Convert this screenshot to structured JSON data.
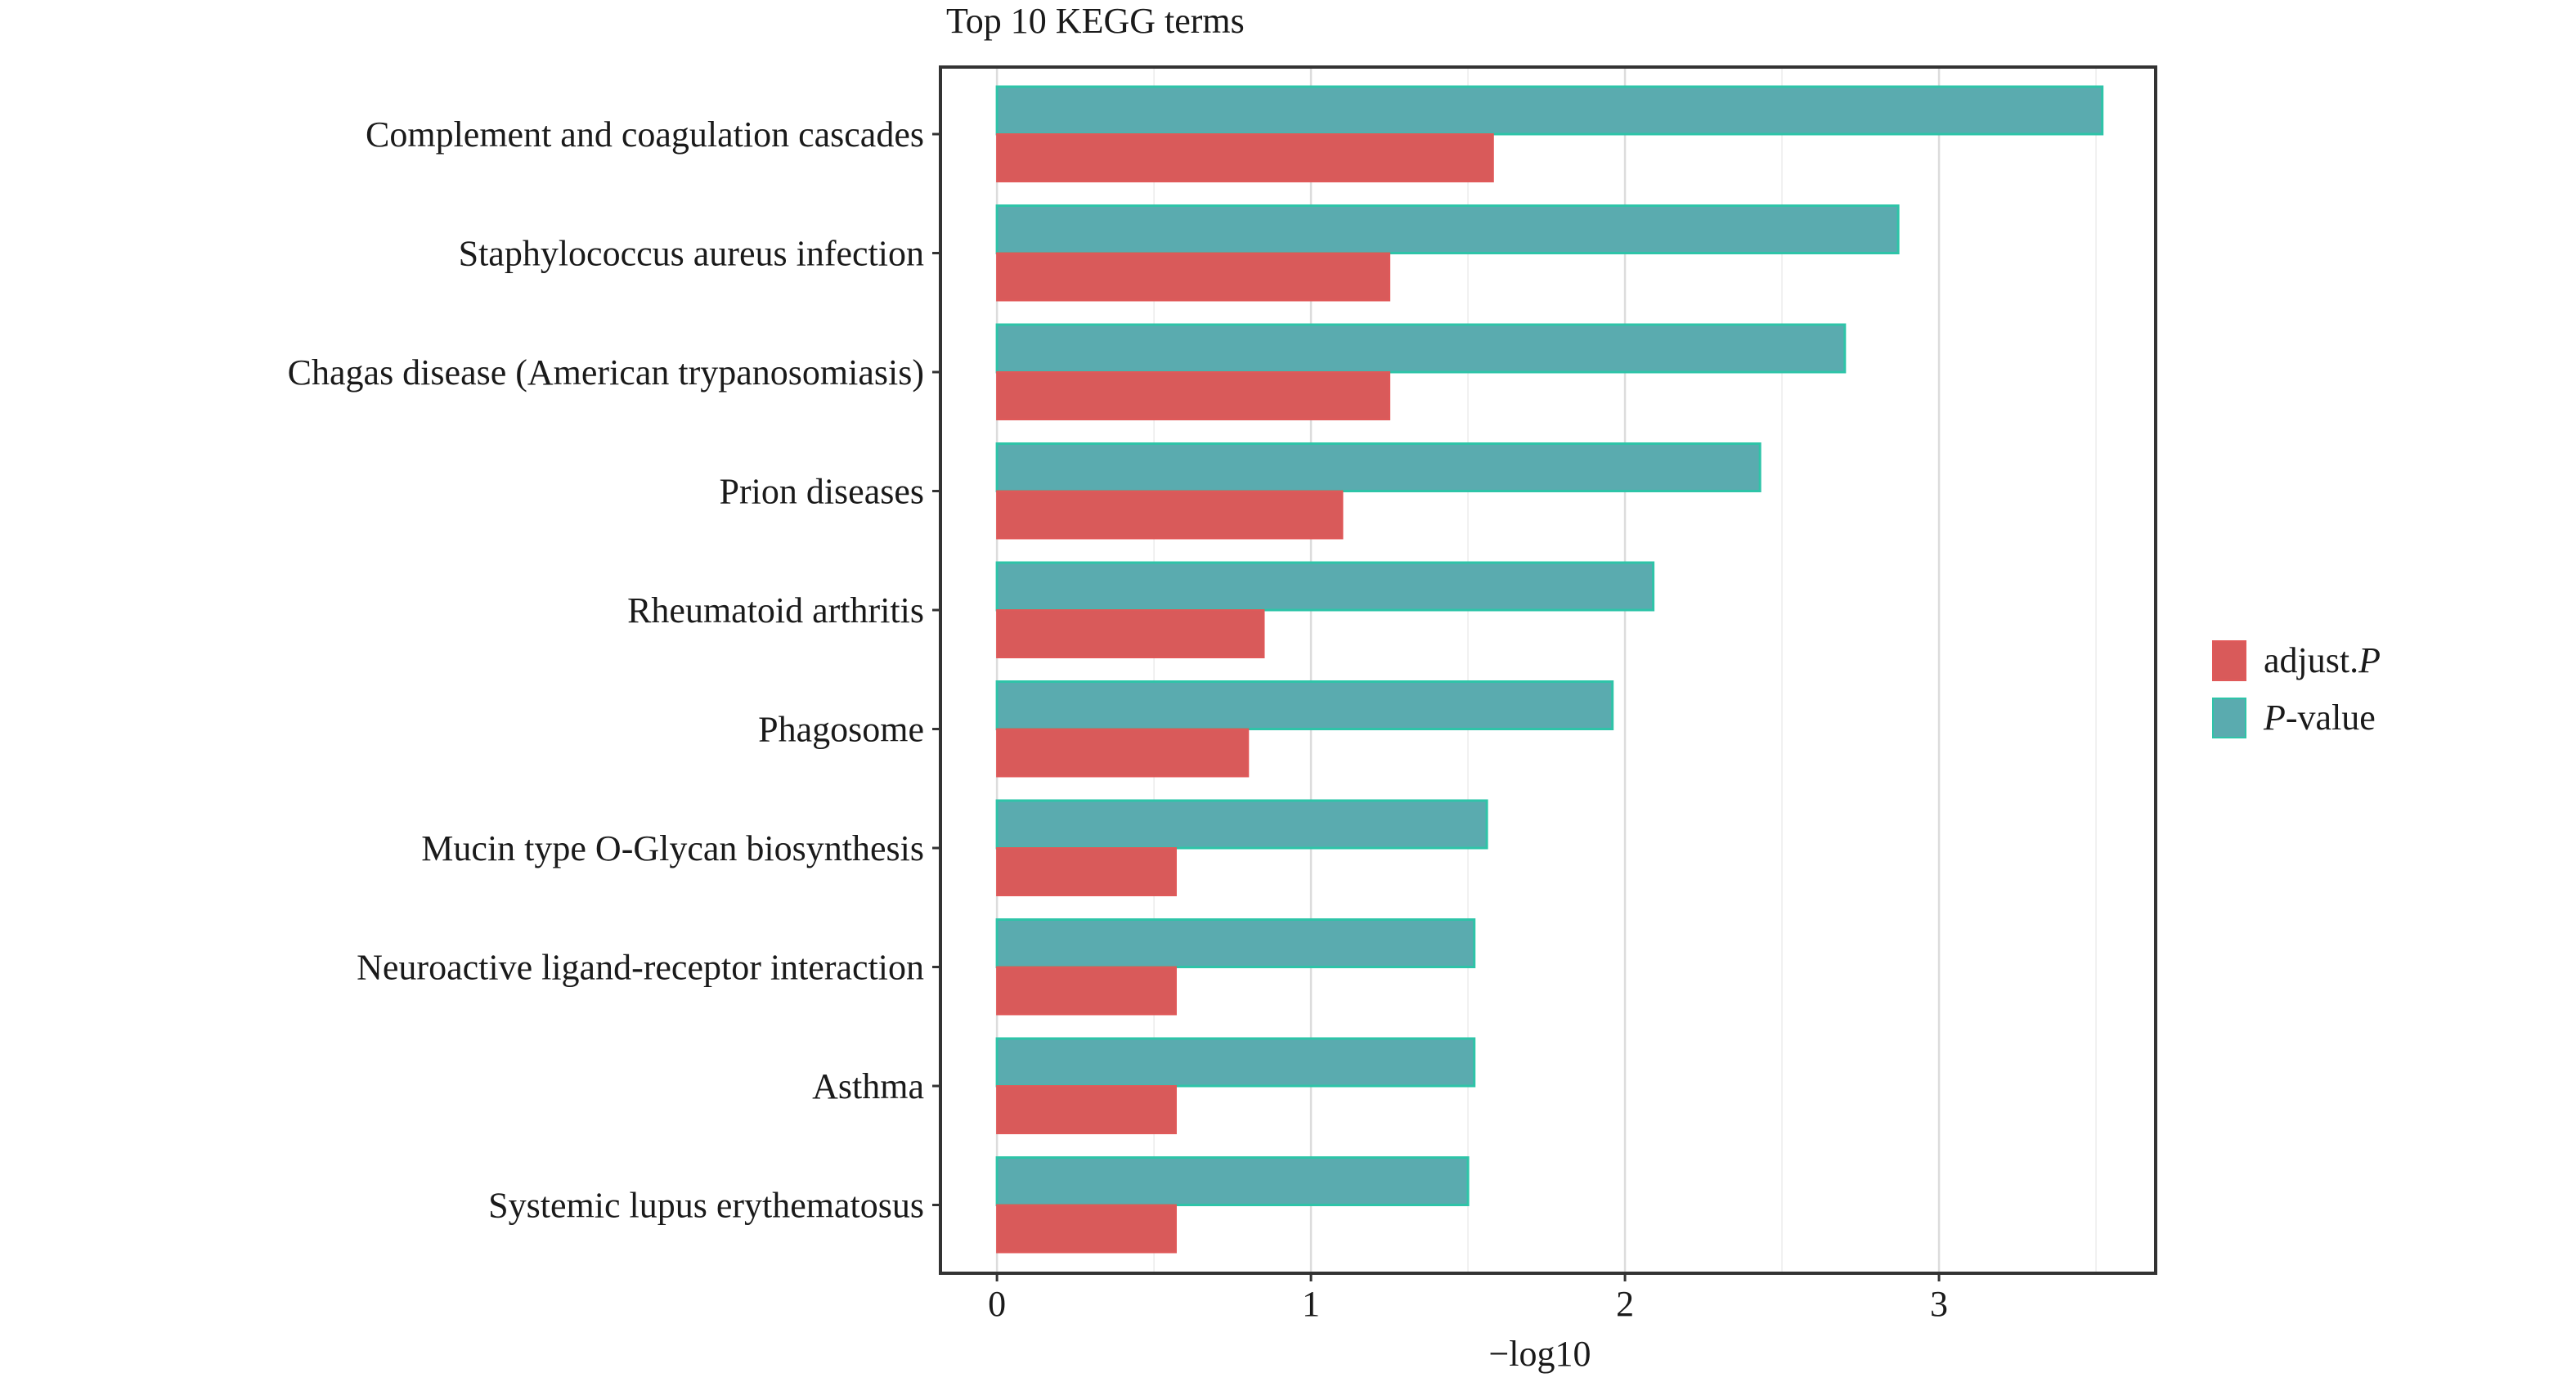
{
  "chart_data": {
    "type": "bar",
    "orientation": "horizontal",
    "title": "Top 10 KEGG terms",
    "xlabel": "−log10",
    "ylabel": "",
    "xlim": [
      -0.18,
      3.69
    ],
    "xticks": [
      "0",
      "1",
      "2",
      "3"
    ],
    "xtick_values": [
      0,
      1,
      2,
      3
    ],
    "grid": true,
    "legend_position": "right",
    "categories": [
      "Complement and coagulation cascades",
      "Staphylococcus aureus infection",
      "Chagas disease (American trypanosomiasis)",
      "Prion diseases",
      "Rheumatoid arthritis",
      "Phagosome",
      "Mucin type O-Glycan biosynthesis",
      "Neuroactive ligand-receptor interaction",
      "Asthma",
      "Systemic lupus erythematosus"
    ],
    "series": [
      {
        "name": "P-value",
        "legend_prefix": "P",
        "legend_suffix": "-value",
        "color": "#5aabaf",
        "edge_color": "#2ec4a8",
        "values": [
          3.52,
          2.87,
          2.7,
          2.43,
          2.09,
          1.96,
          1.56,
          1.52,
          1.52,
          1.5
        ]
      },
      {
        "name": "adjust.P",
        "legend_prefix": "adjust.",
        "legend_suffix": "P",
        "color": "#d95a5a",
        "edge_color": "#e05959",
        "values": [
          1.58,
          1.25,
          1.25,
          1.1,
          0.85,
          0.8,
          0.57,
          0.57,
          0.57,
          0.57
        ]
      }
    ]
  }
}
